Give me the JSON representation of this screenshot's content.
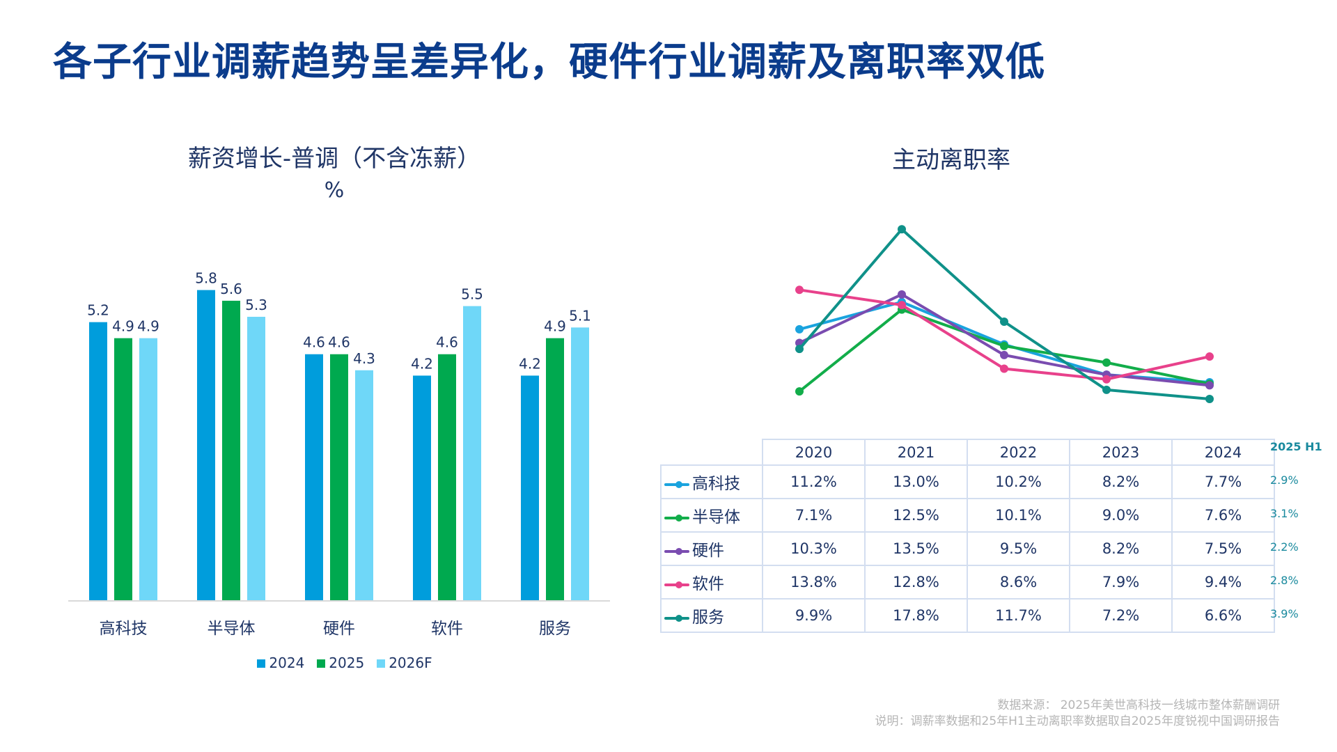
{
  "title": "各子行业调薪趋势呈差异化，硬件行业调薪及离职率双低",
  "chart_data": [
    {
      "type": "bar",
      "title": "薪资增长-普调（不含冻薪）",
      "ylabel": "%",
      "categories": [
        "高科技",
        "半导体",
        "硬件",
        "软件",
        "服务"
      ],
      "series": [
        {
          "name": "2024",
          "color": "#009ddc",
          "values": [
            5.2,
            5.8,
            4.6,
            4.2,
            4.2
          ]
        },
        {
          "name": "2025",
          "color": "#00a94f",
          "values": [
            4.9,
            5.6,
            4.6,
            4.6,
            4.9
          ]
        },
        {
          "name": "2026F",
          "color": "#6fd7f8",
          "values": [
            4.9,
            5.3,
            4.3,
            5.5,
            5.1
          ]
        }
      ],
      "ylim": [
        0,
        6
      ],
      "legend": "bottom"
    },
    {
      "type": "line",
      "title": "主动离职率",
      "x": [
        "2020",
        "2021",
        "2022",
        "2023",
        "2024"
      ],
      "series": [
        {
          "name": "高科技",
          "color": "#1aa3de",
          "values": [
            11.2,
            13.0,
            10.2,
            8.2,
            7.7
          ],
          "h1_2025": "2.9%"
        },
        {
          "name": "半导体",
          "color": "#12ad4a",
          "values": [
            7.1,
            12.5,
            10.1,
            9.0,
            7.6
          ],
          "h1_2025": "3.1%"
        },
        {
          "name": "硬件",
          "color": "#7a4cb0",
          "values": [
            10.3,
            13.5,
            9.5,
            8.2,
            7.5
          ],
          "h1_2025": "2.2%"
        },
        {
          "name": "软件",
          "color": "#e8418b",
          "values": [
            13.8,
            12.8,
            8.6,
            7.9,
            9.4
          ],
          "h1_2025": "2.8%"
        },
        {
          "name": "服务",
          "color": "#0f9189",
          "values": [
            9.9,
            17.8,
            11.7,
            7.2,
            6.6
          ],
          "h1_2025": "3.9%"
        }
      ],
      "extra_column_label": "2025 H1",
      "unit": "%",
      "legend": "table"
    }
  ],
  "footnotes": {
    "source": "数据来源： 2025年美世高科技一线城市整体薪酬调研",
    "note": "说明：调薪率数据和25年H1主动离职率数据取自2025年度锐视中国调研报告"
  }
}
